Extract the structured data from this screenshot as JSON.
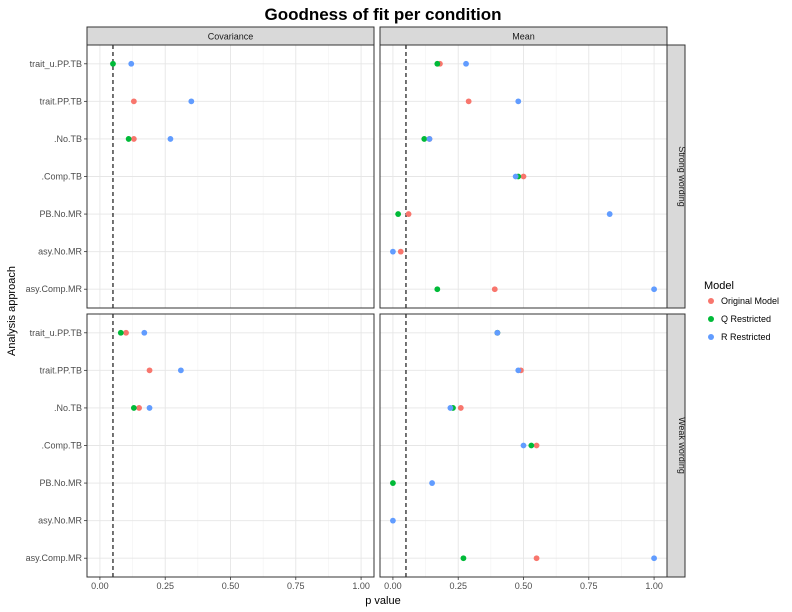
{
  "chart_data": {
    "type": "scatter",
    "title": "Goodness of fit per condition",
    "xlabel": "p value",
    "ylabel": "Analysis approach",
    "xlim": [
      0,
      1
    ],
    "x_ticks": [
      "0.00",
      "0.25",
      "0.50",
      "0.75",
      "1.00"
    ],
    "x_tick_values": [
      0,
      0.25,
      0.5,
      0.75,
      1
    ],
    "reference_line_x": 0.05,
    "categories": [
      "trait_u.PP.TB",
      "trait.PP.TB",
      ".No.TB",
      ".Comp.TB",
      "PB.No.MR",
      "asy.No.MR",
      "asy.Comp.MR"
    ],
    "column_facets": [
      "Covariance",
      "Mean"
    ],
    "row_facets": [
      "Strong wording",
      "Weak wording"
    ],
    "legend": {
      "title": "Model",
      "position": "right",
      "items": [
        "Original Model",
        "Q Restricted",
        "R Restricted"
      ]
    },
    "colors": {
      "Original Model": "#F8766D",
      "Q Restricted": "#00BA38",
      "R Restricted": "#619CFF"
    },
    "grid": true,
    "panels": [
      {
        "row": "Strong wording",
        "col": "Covariance",
        "series": [
          {
            "name": "Original Model",
            "values": [
              null,
              0.13,
              0.13,
              null,
              null,
              null,
              null
            ]
          },
          {
            "name": "Q Restricted",
            "values": [
              0.05,
              null,
              0.11,
              null,
              null,
              null,
              null
            ]
          },
          {
            "name": "R Restricted",
            "values": [
              0.12,
              0.35,
              0.27,
              null,
              null,
              null,
              null
            ]
          }
        ]
      },
      {
        "row": "Strong wording",
        "col": "Mean",
        "series": [
          {
            "name": "Original Model",
            "values": [
              0.18,
              0.29,
              0.14,
              0.5,
              0.06,
              0.03,
              0.39
            ]
          },
          {
            "name": "Q Restricted",
            "values": [
              0.17,
              null,
              0.12,
              0.48,
              0.02,
              null,
              0.17
            ]
          },
          {
            "name": "R Restricted",
            "values": [
              0.28,
              0.48,
              0.14,
              0.47,
              0.83,
              0.0,
              1.0
            ]
          }
        ]
      },
      {
        "row": "Weak wording",
        "col": "Covariance",
        "series": [
          {
            "name": "Original Model",
            "values": [
              0.1,
              0.19,
              0.15,
              null,
              null,
              null,
              null
            ]
          },
          {
            "name": "Q Restricted",
            "values": [
              0.08,
              null,
              0.13,
              null,
              null,
              null,
              null
            ]
          },
          {
            "name": "R Restricted",
            "values": [
              0.17,
              0.31,
              0.19,
              null,
              null,
              null,
              null
            ]
          }
        ]
      },
      {
        "row": "Weak wording",
        "col": "Mean",
        "series": [
          {
            "name": "Original Model",
            "values": [
              0.4,
              0.49,
              0.26,
              0.55,
              null,
              null,
              0.55
            ]
          },
          {
            "name": "Q Restricted",
            "values": [
              0.4,
              null,
              0.23,
              0.53,
              0.0,
              null,
              0.27
            ]
          },
          {
            "name": "R Restricted",
            "values": [
              0.4,
              0.48,
              0.22,
              0.5,
              0.15,
              0.0,
              1.0
            ]
          }
        ]
      }
    ]
  }
}
